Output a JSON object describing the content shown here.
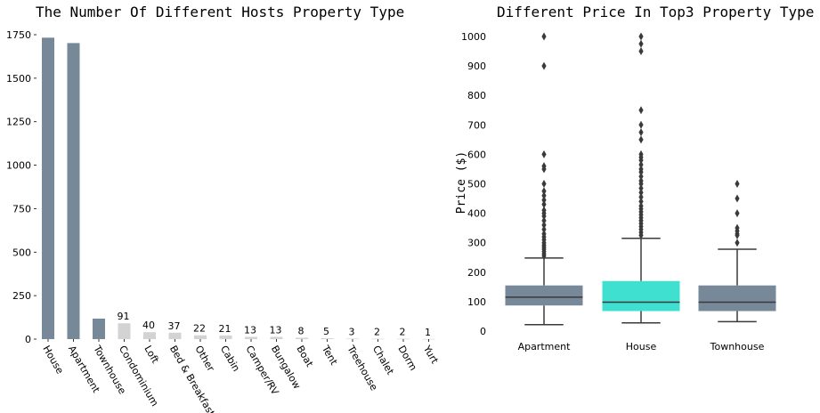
{
  "chart_data": [
    {
      "type": "bar",
      "title": "The Number Of Different Hosts Property Type",
      "xlabel": "",
      "ylabel": "",
      "ylim": [
        0,
        1750
      ],
      "yticks": [
        0,
        250,
        500,
        750,
        1000,
        1250,
        1500,
        1750
      ],
      "categories": [
        "House",
        "Apartment",
        "Townhouse",
        "Condominium",
        "Loft",
        "Bed & Breakfast",
        "Other",
        "Cabin",
        "Camper/RV",
        "Bungalow",
        "Boat",
        "Tent",
        "Treehouse",
        "Chalet",
        "Dorm",
        "Yurt"
      ],
      "values": [
        1733,
        1702,
        118,
        91,
        40,
        37,
        22,
        21,
        13,
        13,
        8,
        5,
        3,
        2,
        2,
        1
      ],
      "data_labels": [
        "",
        "",
        "",
        "91",
        "40",
        "37",
        "22",
        "21",
        "13",
        "13",
        "8",
        "5",
        "3",
        "2",
        "2",
        "1"
      ],
      "colors": {
        "highlight": "#778899",
        "other": "#d3d3d3"
      },
      "highlight_top": 3,
      "grid": false
    },
    {
      "type": "box",
      "title": "Different Price In Top3 Property Type",
      "xlabel": "",
      "ylabel": "Price ($)",
      "ylim": [
        0,
        1000
      ],
      "yticks": [
        0,
        100,
        200,
        300,
        400,
        500,
        600,
        700,
        800,
        900,
        1000
      ],
      "categories": [
        "Apartment",
        "House",
        "Townhouse"
      ],
      "boxes": [
        {
          "q1": 87,
          "median": 115,
          "q3": 155,
          "whisker_low": 22,
          "whisker_high": 248,
          "outliers": [
            255,
            262,
            270,
            278,
            285,
            292,
            300,
            310,
            320,
            330,
            345,
            360,
            375,
            390,
            400,
            410,
            430,
            445,
            460,
            475,
            500,
            550,
            560,
            600,
            900,
            1000
          ]
        },
        {
          "q1": 68,
          "median": 98,
          "q3": 170,
          "whisker_low": 28,
          "whisker_high": 315,
          "outliers": [
            325,
            335,
            345,
            355,
            365,
            375,
            385,
            395,
            405,
            415,
            425,
            440,
            455,
            470,
            485,
            500,
            510,
            525,
            540,
            550,
            565,
            580,
            590,
            600,
            650,
            675,
            700,
            750,
            950,
            975,
            1000
          ]
        },
        {
          "q1": 68,
          "median": 98,
          "q3": 155,
          "whisker_low": 32,
          "whisker_high": 278,
          "outliers": [
            300,
            325,
            330,
            340,
            350,
            400,
            450,
            500
          ]
        }
      ],
      "colors": {
        "default": "#778899",
        "highlight": "#40e0d0",
        "line": "#3a3a3a"
      },
      "highlight_index": 1,
      "grid": false
    }
  ]
}
